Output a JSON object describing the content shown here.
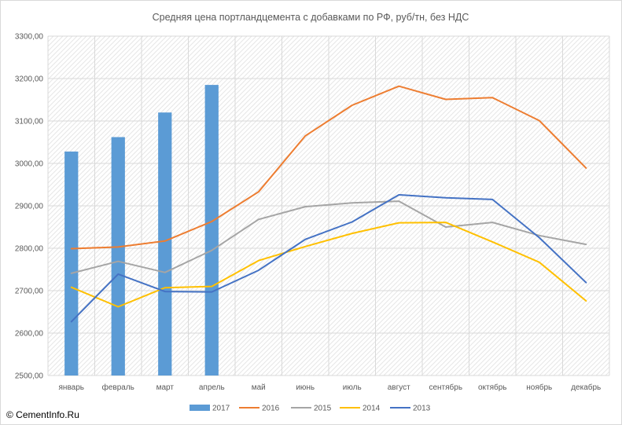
{
  "chart_data": {
    "type": "bar",
    "title": "Средняя цена портландцемента с добавками по РФ, руб/тн, без НДС",
    "xlabel": "",
    "ylabel": "",
    "categories": [
      "январь",
      "февраль",
      "март",
      "апрель",
      "май",
      "июнь",
      "июль",
      "август",
      "сентябрь",
      "октябрь",
      "ноябрь",
      "декабрь"
    ],
    "y_ticks": [
      "2500,00",
      "2600,00",
      "2700,00",
      "2800,00",
      "2900,00",
      "3000,00",
      "3100,00",
      "3200,00",
      "3300,00"
    ],
    "ylim": [
      2500,
      3300
    ],
    "grid": true,
    "legend_position": "bottom",
    "series": [
      {
        "name": "2017",
        "type": "bar",
        "color": "#5B9BD5",
        "values": [
          3028,
          3062,
          3120,
          3185,
          null,
          null,
          null,
          null,
          null,
          null,
          null,
          null
        ]
      },
      {
        "name": "2016",
        "type": "line",
        "color": "#ED7D31",
        "values": [
          2799,
          2803,
          2817,
          2863,
          2933,
          3065,
          3137,
          3182,
          3151,
          3155,
          3101,
          2989
        ]
      },
      {
        "name": "2015",
        "type": "line",
        "color": "#A5A5A5",
        "values": [
          2741,
          2769,
          2743,
          2795,
          2868,
          2898,
          2907,
          2911,
          2850,
          2861,
          2830,
          2809
        ]
      },
      {
        "name": "2014",
        "type": "line",
        "color": "#FFC000",
        "values": [
          2708,
          2662,
          2707,
          2710,
          2771,
          2804,
          2835,
          2860,
          2861,
          2815,
          2767,
          2676
        ]
      },
      {
        "name": "2013",
        "type": "line",
        "color": "#4472C4",
        "values": [
          2627,
          2739,
          2698,
          2697,
          2748,
          2821,
          2862,
          2926,
          2919,
          2915,
          2825,
          2719
        ]
      }
    ]
  },
  "copyright": "© CementInfo.Ru"
}
